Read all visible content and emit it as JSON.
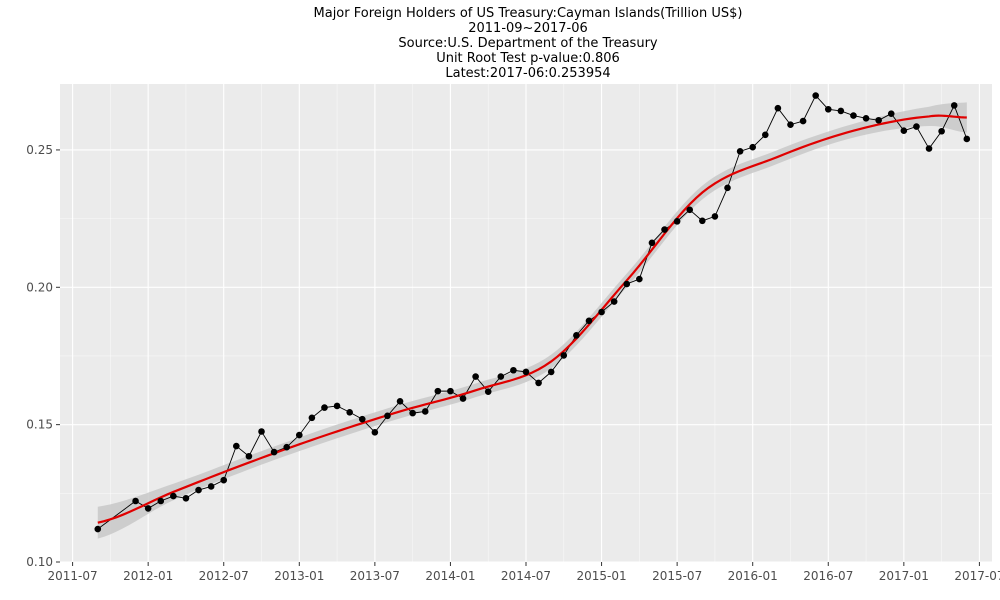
{
  "title_lines": [
    "Major Foreign Holders of US Treasury:Cayman Islands(Trillion US$)",
    "2011-09~2017-06",
    "Source:U.S. Department of the Treasury",
    "Unit Root Test p-value:0.806",
    "Latest:2017-06:0.253954"
  ],
  "colors": {
    "panel_background": "#ebebeb",
    "grid_major": "#ffffff",
    "points": "#000000",
    "line": "#000000",
    "smooth_line": "#e00000",
    "confidence_band": "#c8c8c8"
  },
  "chart_data": {
    "type": "line",
    "title": "Major Foreign Holders of US Treasury:Cayman Islands(Trillion US$)",
    "xlabel": "",
    "ylabel": "",
    "x_tick_labels": [
      "2011-07",
      "2012-01",
      "2012-07",
      "2013-01",
      "2013-07",
      "2014-01",
      "2014-07",
      "2015-01",
      "2015-07",
      "2016-01",
      "2016-07",
      "2017-01",
      "2017-07"
    ],
    "y_tick_labels": [
      "0.10",
      "0.15",
      "0.20",
      "0.25"
    ],
    "y_ticks": [
      0.1,
      0.15,
      0.2,
      0.25
    ],
    "ylim": [
      0.1,
      0.274
    ],
    "xlim_months": [
      "2011-06",
      "2017-08"
    ],
    "grid": true,
    "legend": "none",
    "series": [
      {
        "kind": "points+line",
        "x": [
          "2011-09",
          "2011-12",
          "2012-01",
          "2012-02",
          "2012-03",
          "2012-04",
          "2012-05",
          "2012-06",
          "2012-07",
          "2012-08",
          "2012-09",
          "2012-10",
          "2012-11",
          "2012-12",
          "2013-01",
          "2013-02",
          "2013-03",
          "2013-04",
          "2013-05",
          "2013-06",
          "2013-07",
          "2013-08",
          "2013-09",
          "2013-10",
          "2013-11",
          "2013-12",
          "2014-01",
          "2014-02",
          "2014-03",
          "2014-04",
          "2014-05",
          "2014-06",
          "2014-07",
          "2014-08",
          "2014-09",
          "2014-10",
          "2014-11",
          "2014-12",
          "2015-01",
          "2015-02",
          "2015-03",
          "2015-04",
          "2015-05",
          "2015-06",
          "2015-07",
          "2015-08",
          "2015-09",
          "2015-10",
          "2015-11",
          "2015-12",
          "2016-01",
          "2016-02",
          "2016-03",
          "2016-04",
          "2016-05",
          "2016-06",
          "2016-07",
          "2016-08",
          "2016-09",
          "2016-10",
          "2016-11",
          "2016-12",
          "2017-01",
          "2017-02",
          "2017-03",
          "2017-04",
          "2017-05",
          "2017-06"
        ],
        "values": [
          0.112,
          0.1222,
          0.1195,
          0.1222,
          0.124,
          0.1232,
          0.1262,
          0.1275,
          0.1298,
          0.1422,
          0.1385,
          0.1475,
          0.14,
          0.1418,
          0.1462,
          0.1525,
          0.1562,
          0.1568,
          0.1545,
          0.152,
          0.1472,
          0.1532,
          0.1585,
          0.1542,
          0.1548,
          0.1622,
          0.1622,
          0.1595,
          0.1675,
          0.162,
          0.1675,
          0.1698,
          0.1692,
          0.1652,
          0.1692,
          0.1752,
          0.1825,
          0.1878,
          0.191,
          0.1948,
          0.2012,
          0.203,
          0.2162,
          0.221,
          0.224,
          0.2282,
          0.2242,
          0.2258,
          0.2362,
          0.2495,
          0.251,
          0.2555,
          0.2652,
          0.2592,
          0.2605,
          0.2698,
          0.2648,
          0.2642,
          0.2625,
          0.2615,
          0.2608,
          0.2632,
          0.257,
          0.2585,
          0.2505,
          0.2568,
          0.2662,
          0.254
        ]
      },
      {
        "kind": "smooth",
        "x": [
          "2011-09",
          "2012-03",
          "2012-09",
          "2013-03",
          "2013-09",
          "2014-03",
          "2014-09",
          "2015-03",
          "2015-09",
          "2016-03",
          "2016-09",
          "2017-03",
          "2017-06"
        ],
        "values": [
          0.1143,
          0.1255,
          0.1362,
          0.146,
          0.1548,
          0.1625,
          0.173,
          0.2025,
          0.2345,
          0.2475,
          0.257,
          0.2622,
          0.2618
        ],
        "band_halfwidth": [
          0.0058,
          0.003,
          0.0025,
          0.0025,
          0.0025,
          0.0025,
          0.0025,
          0.0025,
          0.0025,
          0.0025,
          0.0025,
          0.0035,
          0.0055
        ]
      }
    ]
  }
}
